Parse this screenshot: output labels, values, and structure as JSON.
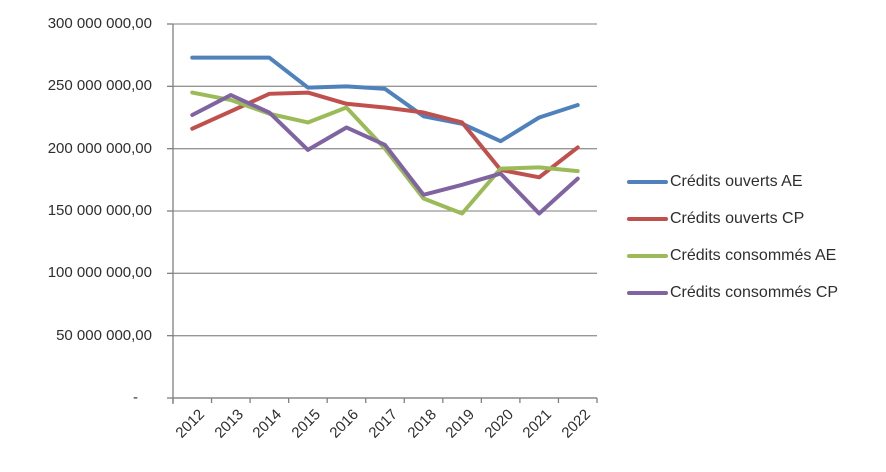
{
  "chart_data": {
    "type": "line",
    "title": "",
    "xlabel": "",
    "ylabel": "",
    "x": [
      "2012",
      "2013",
      "2014",
      "2015",
      "2016",
      "2017",
      "2018",
      "2019",
      "2020",
      "2021",
      "2022"
    ],
    "series": [
      {
        "name": "Crédits ouverts AE",
        "color": "#4F81BD",
        "values": [
          273000000,
          273000000,
          273000000,
          249000000,
          250000000,
          248000000,
          226000000,
          220000000,
          206000000,
          225000000,
          235000000
        ]
      },
      {
        "name": "Crédits ouverts CP",
        "color": "#C0504D",
        "values": [
          216000000,
          230000000,
          244000000,
          245000000,
          236000000,
          233000000,
          229000000,
          221000000,
          183000000,
          177000000,
          201000000
        ]
      },
      {
        "name": "Crédits consommés AE",
        "color": "#9BBB59",
        "values": [
          245000000,
          239000000,
          228000000,
          221000000,
          233000000,
          200000000,
          160000000,
          148000000,
          184000000,
          185000000,
          182000000
        ]
      },
      {
        "name": "Crédits consommés CP",
        "color": "#8064A2",
        "values": [
          227000000,
          243000000,
          229000000,
          199000000,
          217000000,
          203000000,
          163000000,
          171000000,
          180000000,
          148000000,
          176000000
        ]
      }
    ],
    "y_ticks": [
      {
        "value": 300000000,
        "label": "300 000 000,00"
      },
      {
        "value": 250000000,
        "label": "250 000 000,00"
      },
      {
        "value": 200000000,
        "label": "200 000 000,00"
      },
      {
        "value": 150000000,
        "label": "150 000 000,00"
      },
      {
        "value": 100000000,
        "label": "100 000 000,00"
      },
      {
        "value": 50000000,
        "label": "50 000 000,00"
      },
      {
        "value": 0,
        "label": "-"
      }
    ],
    "ylim": [
      0,
      300000000
    ],
    "grid": "horizontal",
    "legend_position": "right",
    "colors": {
      "gridline": "#969696",
      "axis": "#808080",
      "text": "#2e2e2e",
      "background": "#ffffff"
    }
  }
}
